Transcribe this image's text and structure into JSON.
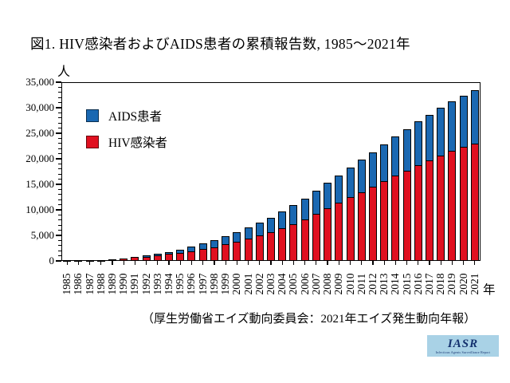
{
  "title": "図1.  HIV感染者およびAIDS患者の累積報告数, 1985～2021年",
  "caption": "（厚生労働省エイズ動向委員会：2021年エイズ発生動向年報）",
  "logo": {
    "text": "IASR",
    "subtext": "Infectious Agents Surveillance Report",
    "bg_color": "#a9d2e6",
    "fg_color": "#14316e"
  },
  "chart_data": {
    "type": "bar",
    "stacked": true,
    "title": "図1.  HIV感染者およびAIDS患者の累積報告数, 1985～2021年",
    "x_unit": "年",
    "y_unit": "人",
    "xlabel": "年",
    "ylabel": "人",
    "grid": false,
    "legend_position": "top-left-inside",
    "ylim": [
      0,
      35000
    ],
    "y_major_step": 5000,
    "y_minor_step": 1000,
    "y_tick_labels": [
      "0",
      "5,000",
      "10,000",
      "15,000",
      "20,000",
      "25,000",
      "30,000",
      "35,000"
    ],
    "categories": [
      "1985",
      "1986",
      "1987",
      "1988",
      "1989",
      "1990",
      "1991",
      "1992",
      "1993",
      "1994",
      "1995",
      "1996",
      "1997",
      "1998",
      "1999",
      "2000",
      "2001",
      "2002",
      "2003",
      "2004",
      "2005",
      "2006",
      "2007",
      "2008",
      "2009",
      "2010",
      "2011",
      "2012",
      "2013",
      "2014",
      "2015",
      "2016",
      "2017",
      "2018",
      "2019",
      "2020",
      "2021"
    ],
    "series": [
      {
        "name": "HIV感染者",
        "color": "#e01020",
        "values": [
          5,
          17,
          69,
          155,
          256,
          364,
          516,
          808,
          1055,
          1331,
          1608,
          1946,
          2294,
          2716,
          3246,
          3708,
          4329,
          4943,
          5583,
          6363,
          7195,
          8147,
          9229,
          10355,
          11376,
          12451,
          13507,
          14509,
          15615,
          16706,
          17712,
          18723,
          19699,
          20639,
          21542,
          22292,
          23034
        ]
      },
      {
        "name": "AIDS患者",
        "color": "#1a68b2",
        "values": [
          12,
          27,
          53,
          75,
          106,
          140,
          188,
          258,
          340,
          459,
          628,
          860,
          1110,
          1341,
          1641,
          1970,
          2281,
          2589,
          2925,
          3310,
          3677,
          4083,
          4501,
          4932,
          5363,
          5832,
          6305,
          6752,
          7236,
          7691,
          8119,
          8556,
          8969,
          9346,
          9679,
          10024,
          10339
        ]
      }
    ]
  }
}
